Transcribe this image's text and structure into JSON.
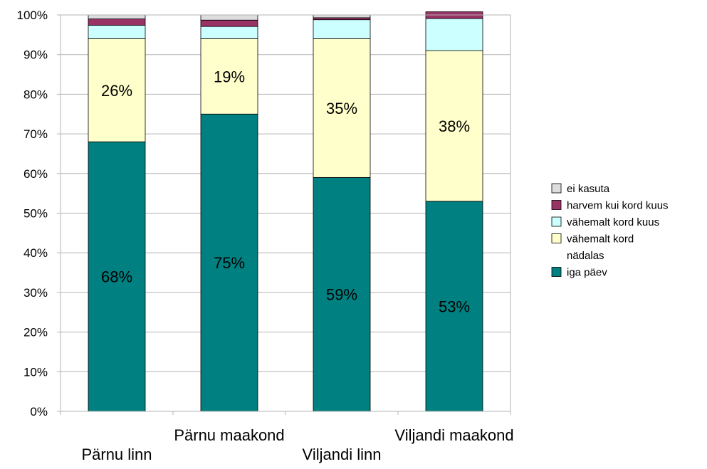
{
  "chart_data": {
    "type": "bar",
    "stacked": true,
    "percent": true,
    "categories": [
      "Pärnu linn",
      "Pärnu maakond",
      "Viljandi linn",
      "Viljandi maakond"
    ],
    "series": [
      {
        "name": "iga päev",
        "color": "#008080",
        "values": [
          68,
          75,
          59,
          53
        ],
        "labels": [
          "68%",
          "75%",
          "59%",
          "53%"
        ]
      },
      {
        "name": "vähemalt kord nädalas",
        "color": "#ffffcc",
        "values": [
          26,
          19,
          35,
          38
        ],
        "labels": [
          "26%",
          "19%",
          "35%",
          "38%"
        ]
      },
      {
        "name": "vähemalt kord kuus",
        "color": "#ccffff",
        "values": [
          3.4,
          3.1,
          4.8,
          8.1
        ]
      },
      {
        "name": "harvem kui kord kuus",
        "color": "#993366",
        "values": [
          1.6,
          1.6,
          0.5,
          1.7
        ]
      },
      {
        "name": "ei kasuta",
        "color": "#dddddd",
        "values": [
          1.0,
          1.3,
          0.7,
          0
        ]
      }
    ],
    "yticks": [
      "0%",
      "10%",
      "20%",
      "30%",
      "40%",
      "50%",
      "60%",
      "70%",
      "80%",
      "90%",
      "100%"
    ],
    "ylim": [
      0,
      100
    ],
    "grid": true,
    "legend": {
      "placement": "right",
      "entries": [
        {
          "lines": [
            "ei kasuta"
          ],
          "color": "#dddddd"
        },
        {
          "lines": [
            "harvem kui kord kuus"
          ],
          "color": "#993366"
        },
        {
          "lines": [
            "vähemalt kord kuus"
          ],
          "color": "#ccffff"
        },
        {
          "lines": [
            "vähemalt kord",
            "nädalas"
          ],
          "color": "#ffffcc"
        },
        {
          "lines": [
            "iga päev"
          ],
          "color": "#008080"
        }
      ]
    }
  }
}
